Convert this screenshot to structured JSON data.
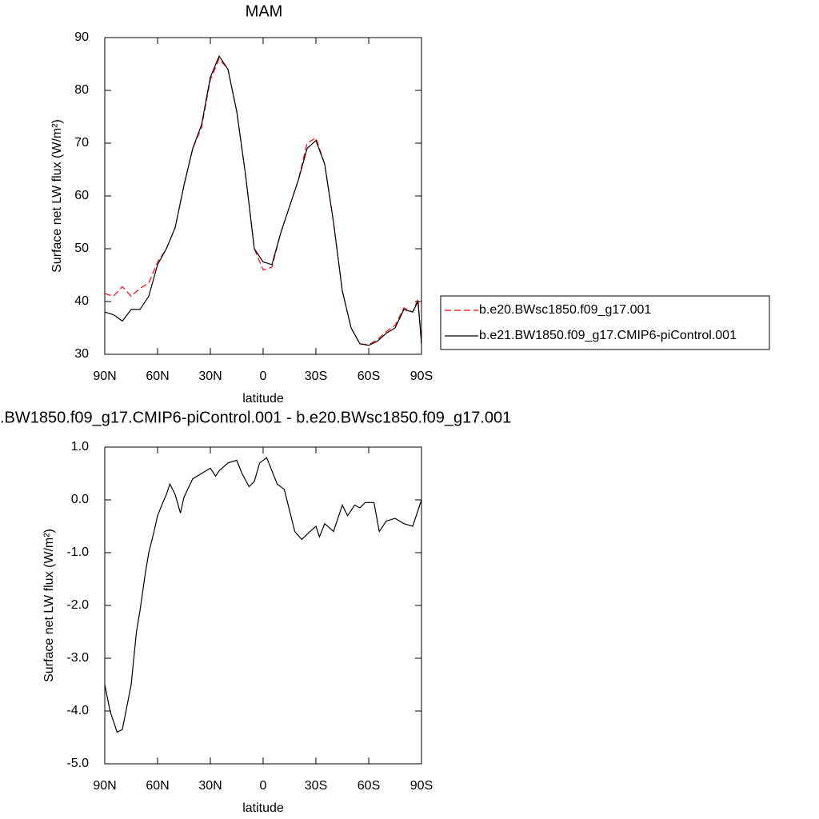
{
  "chart_data": [
    {
      "type": "line",
      "title": "MAM",
      "x_label": "latitude",
      "y_label": "Surface net LW flux (W/m²)",
      "x": [
        90,
        85,
        80,
        75,
        70,
        65,
        60,
        55,
        50,
        45,
        40,
        35,
        30,
        25,
        20,
        15,
        10,
        5,
        0,
        -5,
        -10,
        -15,
        -20,
        -25,
        -30,
        -35,
        -40,
        -45,
        -50,
        -55,
        -60,
        -65,
        -70,
        -75,
        -80,
        -85,
        -88,
        -90
      ],
      "xlim": [
        90,
        -90
      ],
      "xticks": [
        {
          "value": 90,
          "label": "90N"
        },
        {
          "value": 60,
          "label": "60N"
        },
        {
          "value": 30,
          "label": "30N"
        },
        0,
        {
          "value": -30,
          "label": "30S"
        },
        {
          "value": -60,
          "label": "60S"
        },
        {
          "value": -90,
          "label": "90S"
        }
      ],
      "ylim": [
        30,
        90
      ],
      "yticks": [
        30,
        40,
        50,
        60,
        70,
        80,
        90
      ],
      "legend": "right",
      "series": [
        {
          "name": "b.e20.BWsc1850.f09_g17.001",
          "color": "#ff0000",
          "style": "dashed",
          "values": [
            41.5,
            41,
            42.8,
            41,
            42.5,
            43.5,
            47.5,
            50,
            54,
            62,
            69,
            73,
            82,
            86,
            84,
            76,
            64,
            50,
            46,
            46.5,
            53,
            58,
            63,
            70,
            71,
            66,
            55,
            42,
            35,
            32,
            31.8,
            32.8,
            34.3,
            35.5,
            38.8,
            38,
            40.5,
            32
          ]
        },
        {
          "name": "b.e21.BW1850.f09_g17.CMIP6-piControl.001",
          "color": "#000000",
          "style": "solid",
          "values": [
            38,
            37.5,
            36.3,
            38.5,
            38.5,
            41,
            47,
            50,
            54,
            62,
            69,
            73.5,
            82.5,
            86.5,
            84,
            76,
            64,
            50,
            47.5,
            47,
            53,
            58,
            63,
            69,
            70.5,
            66,
            55,
            42,
            35,
            32,
            31.7,
            32.5,
            34,
            35,
            38.5,
            38,
            40,
            32
          ]
        }
      ]
    },
    {
      "type": "line",
      "title": ".BW1850.f09_g17.CMIP6-piControl.001 - b.e20.BWsc1850.f09_g17.001",
      "x_label": "latitude",
      "y_label": "Surface net LW flux (W/m²)",
      "x": [
        90,
        87,
        85,
        83,
        80,
        75,
        72,
        70,
        67,
        65,
        62,
        60,
        57,
        55,
        53,
        50,
        47,
        45,
        40,
        35,
        30,
        27,
        25,
        20,
        15,
        12,
        8,
        5,
        2,
        -2,
        -5,
        -8,
        -12,
        -15,
        -18,
        -22,
        -25,
        -30,
        -32,
        -35,
        -40,
        -45,
        -48,
        -52,
        -55,
        -58,
        -63,
        -66,
        -70,
        -75,
        -80,
        -85,
        -90
      ],
      "xlim": [
        90,
        -90
      ],
      "xticks": [
        {
          "value": 90,
          "label": "90N"
        },
        {
          "value": 60,
          "label": "60N"
        },
        {
          "value": 30,
          "label": "30N"
        },
        0,
        {
          "value": -30,
          "label": "30S"
        },
        {
          "value": -60,
          "label": "60S"
        },
        {
          "value": -90,
          "label": "90S"
        }
      ],
      "ylim": [
        -5,
        1
      ],
      "yticks": [
        {
          "value": -5,
          "label": "-5.0"
        },
        {
          "value": -4,
          "label": "-4.0"
        },
        {
          "value": -3,
          "label": "-3.0"
        },
        {
          "value": -2,
          "label": "-2.0"
        },
        {
          "value": -1,
          "label": "-1.0"
        },
        {
          "value": 0,
          "label": "0.0"
        },
        {
          "value": 1,
          "label": "1.0"
        }
      ],
      "series": [
        {
          "color": "#000000",
          "style": "solid",
          "values": [
            -3.5,
            -4.0,
            -4.2,
            -4.4,
            -4.35,
            -3.5,
            -2.5,
            -2.1,
            -1.4,
            -1.0,
            -0.6,
            -0.3,
            -0.05,
            0.1,
            0.3,
            0.1,
            -0.25,
            0.05,
            0.4,
            0.5,
            0.6,
            0.45,
            0.55,
            0.7,
            0.75,
            0.5,
            0.25,
            0.35,
            0.7,
            0.8,
            0.55,
            0.3,
            0.2,
            -0.2,
            -0.6,
            -0.75,
            -0.65,
            -0.5,
            -0.7,
            -0.45,
            -0.6,
            -0.1,
            -0.3,
            -0.1,
            -0.15,
            -0.05,
            -0.05,
            -0.6,
            -0.4,
            -0.35,
            -0.45,
            -0.5,
            0.0
          ]
        }
      ]
    }
  ]
}
